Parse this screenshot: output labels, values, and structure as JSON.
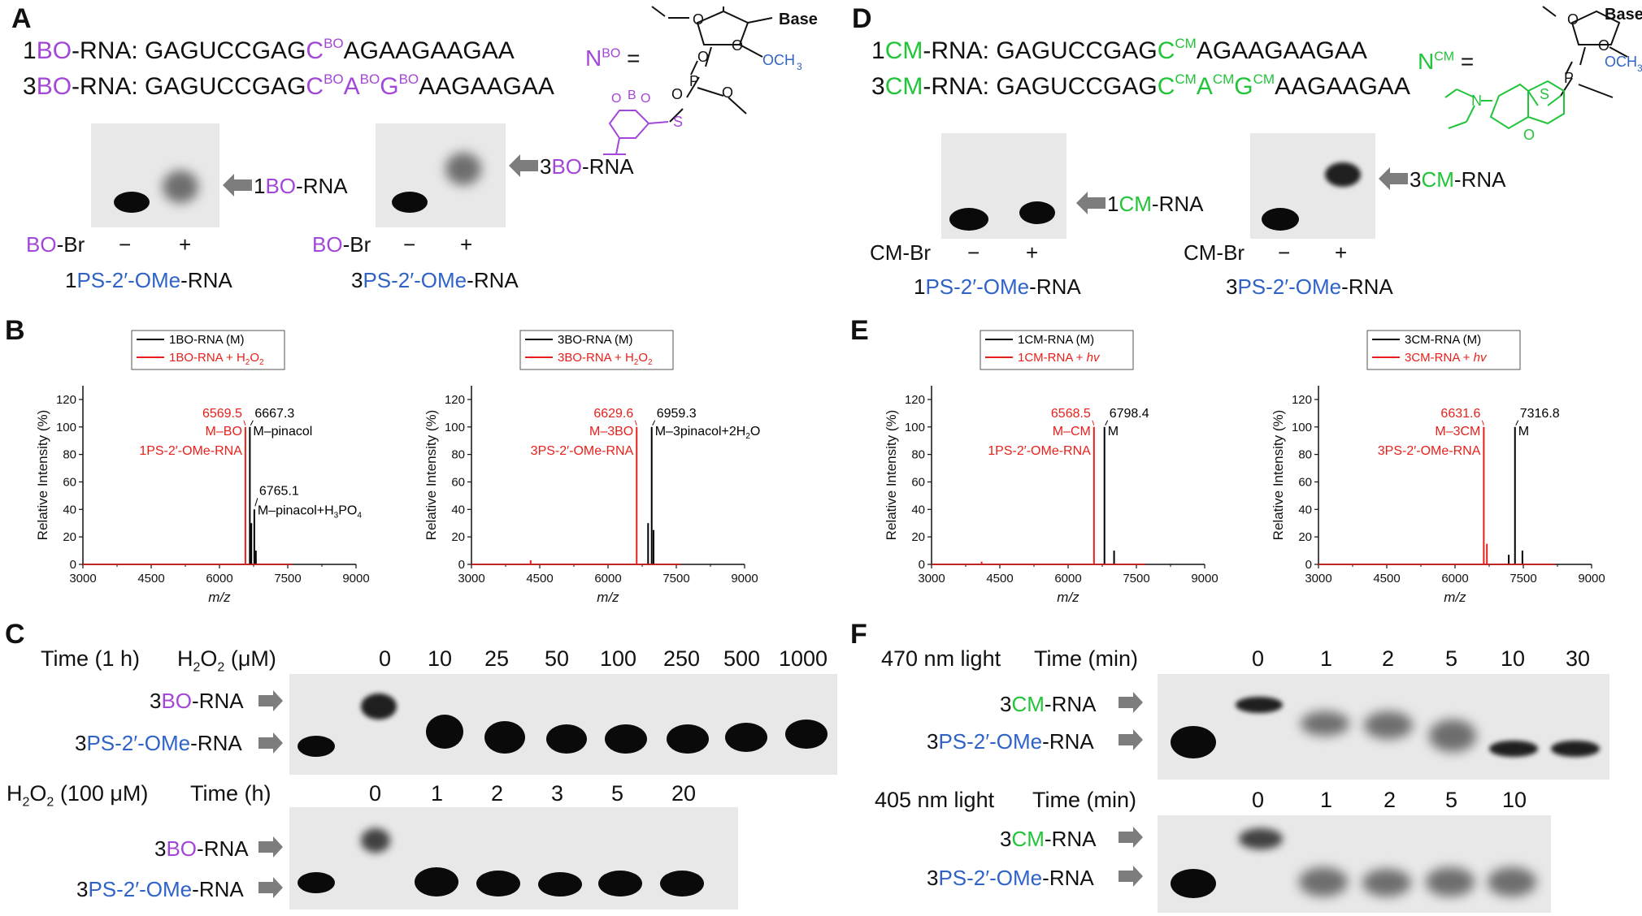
{
  "panels": {
    "A": {
      "letter": "A",
      "seq1_prefix": "1",
      "seq1_tag": "BO",
      "seq1_mid": "-RNA: GAGUCCGAG",
      "seq1_c": "C",
      "seq1_csup": "BO",
      "seq1_rest": "AGAAGAAGAA",
      "seq2_prefix": "3",
      "seq2_tag": "BO",
      "seq2_mid": "-RNA: GAGUCCGAG",
      "seq2_c": "C",
      "seq2_csup": "BO",
      "seq2_a": "A",
      "seq2_asup": "BO",
      "seq2_g": "G",
      "seq2_gsup": "BO",
      "seq2_rest": "AAGAAGAA",
      "n_label": "N",
      "n_sup": "BO",
      "n_eq": " =",
      "struct_base": "Base",
      "struct_och3": "OCH",
      "struct_och3_sub": "3",
      "struct_p": "P",
      "struct_s": "S",
      "struct_o": "O",
      "struct_b": "B",
      "gel1_arrow_label_num": "1",
      "gel1_arrow_label_tag": "BO",
      "gel1_arrow_label_rest": "-RNA",
      "gel2_arrow_label_num": "3",
      "gel2_arrow_label_tag": "BO",
      "gel2_arrow_label_rest": "-RNA",
      "reagent_tag": "BO",
      "reagent_rest": "-Br",
      "minus": "−",
      "plus": "+",
      "gel1_caption_num": "1",
      "gel1_caption_ps": "PS-2′-OMe",
      "gel1_caption_rest": "-RNA",
      "gel2_caption_num": "3",
      "gel2_caption_ps": "PS-2′-OMe",
      "gel2_caption_rest": "-RNA"
    },
    "D": {
      "letter": "D",
      "seq1_prefix": "1",
      "seq1_tag": "CM",
      "seq1_mid": "-RNA: GAGUCCGAG",
      "seq1_c": "C",
      "seq1_csup": "CM",
      "seq1_rest": "AGAAGAAGAA",
      "seq2_prefix": "3",
      "seq2_tag": "CM",
      "seq2_mid": "-RNA: GAGUCCGAG",
      "seq2_c": "C",
      "seq2_csup": "CM",
      "seq2_a": "A",
      "seq2_asup": "CM",
      "seq2_g": "G",
      "seq2_gsup": "CM",
      "seq2_rest": "AAGAAGAA",
      "n_label": "N",
      "n_sup": "CM",
      "n_eq": " =",
      "struct_base": "Base",
      "struct_och3": "OCH",
      "struct_och3_sub": "3",
      "struct_p": "P",
      "struct_s": "S",
      "struct_n": "N",
      "struct_o": "O",
      "gel1_arrow_label_num": "1",
      "gel1_arrow_label_tag": "CM",
      "gel1_arrow_label_rest": "-RNA",
      "gel2_arrow_label_num": "3",
      "gel2_arrow_label_tag": "CM",
      "gel2_arrow_label_rest": "-RNA",
      "reagent": "CM-Br",
      "minus": "−",
      "plus": "+",
      "gel1_caption_num": "1",
      "gel1_caption_ps": "PS-2′-OMe",
      "gel1_caption_rest": "-RNA",
      "gel2_caption_num": "3",
      "gel2_caption_ps": "PS-2′-OMe",
      "gel2_caption_rest": "-RNA"
    },
    "B": {
      "letter": "B"
    },
    "E": {
      "letter": "E"
    },
    "C": {
      "letter": "C",
      "top_time": "Time (1 h)",
      "top_h2o2": "H",
      "top_h2o2_sub": "2",
      "top_h2o2_rest": "O",
      "top_h2o2_sub2": "2",
      "top_h2o2_unit": " (μM)",
      "top_lanes": [
        "0",
        "10",
        "25",
        "50",
        "100",
        "250",
        "500",
        "1000"
      ],
      "bot_h2o2": "H",
      "bot_h2o2_sub": "2",
      "bot_h2o2_rest": "O",
      "bot_h2o2_sub2": "2",
      "bot_h2o2_unit": " (100 μM)",
      "bot_time": "Time (h)",
      "bot_lanes": [
        "0",
        "1",
        "2",
        "3",
        "5",
        "20"
      ],
      "row1_num": "3",
      "row1_tag": "BO",
      "row1_rest": "-RNA",
      "row2_num": "3",
      "row2_ps": "PS-2′-OMe",
      "row2_rest": "-RNA"
    },
    "F": {
      "letter": "F",
      "top_light": "470 nm light",
      "top_time": "Time (min)",
      "top_lanes": [
        "0",
        "1",
        "2",
        "5",
        "10",
        "30"
      ],
      "bot_light": "405 nm light",
      "bot_time": "Time (min)",
      "bot_lanes": [
        "0",
        "1",
        "2",
        "5",
        "10"
      ],
      "row1_num": "3",
      "row1_tag": "CM",
      "row1_rest": "-RNA",
      "row2_num": "3",
      "row2_ps": "PS-2′-OMe",
      "row2_rest": "-RNA"
    }
  },
  "chart_data": [
    {
      "type": "line",
      "panel": "B-left",
      "xlabel": "m/z",
      "ylabel": "Relative Intensity (%)",
      "xlim": [
        3000,
        9000
      ],
      "ylim": [
        0,
        130
      ],
      "xticks": [
        3000,
        4500,
        6000,
        7500,
        9000
      ],
      "yticks": [
        0,
        20,
        40,
        60,
        80,
        100,
        120
      ],
      "legend": [
        "1BO-RNA (M)",
        "1BO-RNA + H2O2"
      ],
      "legend_sub_index": "2",
      "series": [
        {
          "name": "1BO-RNA (M)",
          "color": "#000000",
          "peaks": [
            [
              6667.3,
              100
            ],
            [
              6700,
              30
            ],
            [
              6765.1,
              40
            ],
            [
              6800,
              10
            ]
          ],
          "x_end": 7600
        },
        {
          "name": "1BO-RNA + H2O2",
          "color": "#e8201b",
          "peaks": [
            [
              6569.5,
              100
            ]
          ],
          "x_end": 7600
        }
      ],
      "annotations": [
        {
          "text": "6569.5",
          "color": "#e8201b"
        },
        {
          "text": "M–BO",
          "color": "#e8201b"
        },
        {
          "text": "1PS-2′-OMe-RNA",
          "color": "#e8201b"
        },
        {
          "text": "6667.3",
          "color": "#000000"
        },
        {
          "text": "M–pinacol",
          "color": "#000000"
        },
        {
          "text": "6765.1",
          "color": "#000000"
        },
        {
          "text": "M–pinacol+H",
          "color": "#000000"
        }
      ],
      "annotation_extra": {
        "sub1": "3",
        "mid": "PO",
        "sub2": "4"
      }
    },
    {
      "type": "line",
      "panel": "B-right",
      "xlabel": "m/z",
      "ylabel": "Relative Intensity (%)",
      "xlim": [
        3000,
        9000
      ],
      "ylim": [
        0,
        130
      ],
      "xticks": [
        3000,
        4500,
        6000,
        7500,
        9000
      ],
      "yticks": [
        0,
        20,
        40,
        60,
        80,
        100,
        120
      ],
      "legend": [
        "3BO-RNA (M)",
        "3BO-RNA + H2O2"
      ],
      "series": [
        {
          "name": "3BO-RNA (M)",
          "color": "#000000",
          "peaks": [
            [
              6880,
              30
            ],
            [
              6959.3,
              100
            ],
            [
              7000,
              25
            ]
          ],
          "x_end": 7600
        },
        {
          "name": "3BO-RNA + H2O2",
          "color": "#e8201b",
          "peaks": [
            [
              4300,
              3
            ],
            [
              6629.6,
              100
            ]
          ],
          "x_end": 7600
        }
      ],
      "annotations": [
        {
          "text": "6629.6",
          "color": "#e8201b"
        },
        {
          "text": "M–3BO",
          "color": "#e8201b"
        },
        {
          "text": "3PS-2′-OMe-RNA",
          "color": "#e8201b"
        },
        {
          "text": "6959.3",
          "color": "#000000"
        },
        {
          "text": "M–3pinacol+2H",
          "color": "#000000"
        }
      ]
    },
    {
      "type": "line",
      "panel": "E-left",
      "xlabel": "m/z",
      "ylabel": "Relative Intensity (%)",
      "xlim": [
        3000,
        9000
      ],
      "ylim": [
        0,
        130
      ],
      "xticks": [
        3000,
        4500,
        6000,
        7500,
        9000
      ],
      "yticks": [
        0,
        20,
        40,
        60,
        80,
        100,
        120
      ],
      "legend": [
        "1CM-RNA (M)",
        "1CM-RNA + hv"
      ],
      "series": [
        {
          "name": "1CM-RNA (M)",
          "color": "#000000",
          "peaks": [
            [
              6798.4,
              100
            ],
            [
              7010,
              10
            ]
          ],
          "x_end": 7700
        },
        {
          "name": "1CM-RNA + hv",
          "color": "#e8201b",
          "peaks": [
            [
              4100,
              2
            ],
            [
              6568.5,
              100
            ]
          ],
          "x_end": 7700
        }
      ],
      "annotations": [
        {
          "text": "6568.5",
          "color": "#e8201b"
        },
        {
          "text": "M–CM",
          "color": "#e8201b"
        },
        {
          "text": "1PS-2′-OMe-RNA",
          "color": "#e8201b"
        },
        {
          "text": "6798.4",
          "color": "#000000"
        },
        {
          "text": "M",
          "color": "#000000"
        }
      ]
    },
    {
      "type": "line",
      "panel": "E-right",
      "xlabel": "m/z",
      "ylabel": "Relative Intensity (%)",
      "xlim": [
        3000,
        9000
      ],
      "ylim": [
        0,
        130
      ],
      "xticks": [
        3000,
        4500,
        6000,
        7500,
        9000
      ],
      "yticks": [
        0,
        20,
        40,
        60,
        80,
        100,
        120
      ],
      "legend": [
        "3CM-RNA (M)",
        "3CM-RNA + hv"
      ],
      "series": [
        {
          "name": "3CM-RNA (M)",
          "color": "#000000",
          "peaks": [
            [
              7180,
              7
            ],
            [
              7316.8,
              100
            ],
            [
              7480,
              10
            ]
          ],
          "x_end": 8200
        },
        {
          "name": "3CM-RNA + hv",
          "color": "#e8201b",
          "peaks": [
            [
              6631.6,
              100
            ],
            [
              6700,
              15
            ]
          ],
          "x_end": 8200
        }
      ],
      "annotations": [
        {
          "text": "6631.6",
          "color": "#e8201b"
        },
        {
          "text": "M–3CM",
          "color": "#e8201b"
        },
        {
          "text": "3PS-2′-OMe-RNA",
          "color": "#e8201b"
        },
        {
          "text": "7316.8",
          "color": "#000000"
        },
        {
          "text": "M",
          "color": "#000000"
        }
      ]
    }
  ]
}
